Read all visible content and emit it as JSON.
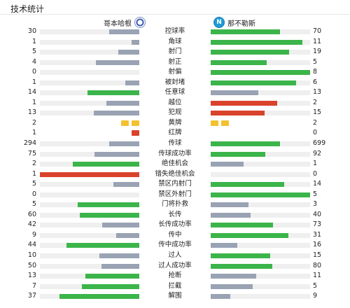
{
  "title": "技术统计",
  "home_team": {
    "name": "哥本哈根",
    "logo_icon": "fc-copenhagen-crest-icon"
  },
  "away_team": {
    "name": "那不勒斯",
    "logo_icon": "ssc-napoli-crest-icon",
    "logo_letter": "N"
  },
  "colors": {
    "gray": "#9aa3b3",
    "green": "#3bb54a",
    "red": "#d9432b",
    "yellow": "#f2c12e",
    "track": "#efefef"
  },
  "stats": [
    {
      "label": "控球率",
      "home": "30",
      "away": "70",
      "home_fill": 0.3,
      "away_fill": 0.7,
      "home_color": "gray",
      "away_color": "green"
    },
    {
      "label": "角球",
      "home": "1",
      "away": "11",
      "home_fill": 0.08,
      "away_fill": 0.92,
      "home_color": "gray",
      "away_color": "green"
    },
    {
      "label": "射门",
      "home": "5",
      "away": "19",
      "home_fill": 0.21,
      "away_fill": 0.79,
      "home_color": "gray",
      "away_color": "green"
    },
    {
      "label": "射正",
      "home": "4",
      "away": "5",
      "home_fill": 0.44,
      "away_fill": 0.56,
      "home_color": "gray",
      "away_color": "green"
    },
    {
      "label": "射偏",
      "home": "0",
      "away": "8",
      "home_fill": 0.0,
      "away_fill": 1.0,
      "home_color": "gray",
      "away_color": "green"
    },
    {
      "label": "被封堵",
      "home": "1",
      "away": "6",
      "home_fill": 0.14,
      "away_fill": 0.86,
      "home_color": "gray",
      "away_color": "green"
    },
    {
      "label": "任意球",
      "home": "14",
      "away": "13",
      "home_fill": 0.52,
      "away_fill": 0.48,
      "home_color": "green",
      "away_color": "gray"
    },
    {
      "label": "越位",
      "home": "1",
      "away": "2",
      "home_fill": 0.33,
      "away_fill": 0.67,
      "home_color": "gray",
      "away_color": "red"
    },
    {
      "label": "犯规",
      "home": "13",
      "away": "15",
      "home_fill": 0.46,
      "away_fill": 0.54,
      "home_color": "gray",
      "away_color": "red"
    },
    {
      "label": "黄牌",
      "home": "2",
      "away": "2",
      "cards": "yellow",
      "home_cards": 2,
      "away_cards": 2
    },
    {
      "label": "红牌",
      "home": "1",
      "away": "0",
      "cards": "red",
      "home_cards": 1,
      "away_cards": 0
    },
    {
      "label": "传球",
      "home": "294",
      "away": "699",
      "home_fill": 0.3,
      "away_fill": 0.7,
      "home_color": "gray",
      "away_color": "green"
    },
    {
      "label": "传球成功率",
      "home": "75",
      "away": "92",
      "home_fill": 0.45,
      "away_fill": 0.55,
      "home_color": "gray",
      "away_color": "green"
    },
    {
      "label": "绝佳机会",
      "home": "2",
      "away": "1",
      "home_fill": 0.67,
      "away_fill": 0.33,
      "home_color": "green",
      "away_color": "gray"
    },
    {
      "label": "错失绝佳机会",
      "home": "1",
      "away": "0",
      "home_fill": 1.0,
      "away_fill": 0.0,
      "home_color": "red",
      "away_color": "gray"
    },
    {
      "label": "禁区内射门",
      "home": "5",
      "away": "14",
      "home_fill": 0.26,
      "away_fill": 0.74,
      "home_color": "gray",
      "away_color": "green"
    },
    {
      "label": "禁区外射门",
      "home": "0",
      "away": "5",
      "home_fill": 0.0,
      "away_fill": 1.0,
      "home_color": "gray",
      "away_color": "green"
    },
    {
      "label": "门将扑救",
      "home": "5",
      "away": "3",
      "home_fill": 0.62,
      "away_fill": 0.38,
      "home_color": "green",
      "away_color": "gray"
    },
    {
      "label": "长传",
      "home": "60",
      "away": "40",
      "home_fill": 0.6,
      "away_fill": 0.4,
      "home_color": "green",
      "away_color": "gray"
    },
    {
      "label": "长传成功率",
      "home": "42",
      "away": "73",
      "home_fill": 0.37,
      "away_fill": 0.63,
      "home_color": "gray",
      "away_color": "green"
    },
    {
      "label": "传中",
      "home": "9",
      "away": "31",
      "home_fill": 0.23,
      "away_fill": 0.78,
      "home_color": "gray",
      "away_color": "green"
    },
    {
      "label": "传中成功率",
      "home": "44",
      "away": "16",
      "home_fill": 0.73,
      "away_fill": 0.27,
      "home_color": "green",
      "away_color": "gray"
    },
    {
      "label": "过人",
      "home": "10",
      "away": "15",
      "home_fill": 0.4,
      "away_fill": 0.6,
      "home_color": "gray",
      "away_color": "green"
    },
    {
      "label": "过人成功率",
      "home": "50",
      "away": "80",
      "home_fill": 0.38,
      "away_fill": 0.62,
      "home_color": "gray",
      "away_color": "green"
    },
    {
      "label": "抢断",
      "home": "13",
      "away": "11",
      "home_fill": 0.54,
      "away_fill": 0.46,
      "home_color": "green",
      "away_color": "gray"
    },
    {
      "label": "拦截",
      "home": "7",
      "away": "5",
      "home_fill": 0.58,
      "away_fill": 0.42,
      "home_color": "green",
      "away_color": "gray"
    },
    {
      "label": "解围",
      "home": "37",
      "away": "9",
      "home_fill": 0.8,
      "away_fill": 0.2,
      "home_color": "green",
      "away_color": "gray"
    }
  ]
}
